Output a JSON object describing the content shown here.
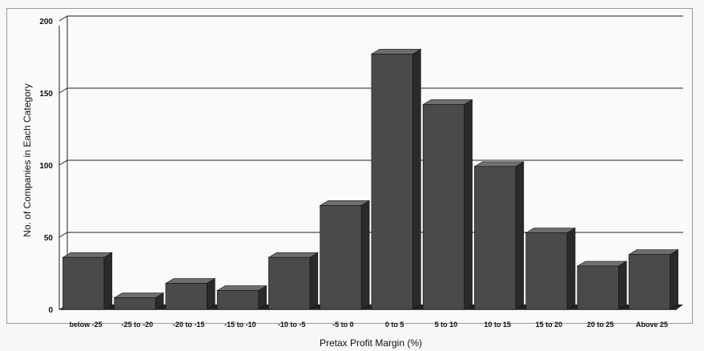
{
  "chart_data": {
    "type": "bar",
    "title": "",
    "xlabel": "Pretax Profit Margin (%)",
    "ylabel": "No. of Companies in Each Category",
    "ylim": [
      0,
      200
    ],
    "yticks": [
      0,
      50,
      100,
      150,
      200
    ],
    "grid": true,
    "categories": [
      "below -25",
      "-25 to -20",
      "-20 to -15",
      "-15 to -10",
      "-10 to -5",
      "-5 to 0",
      "0 to 5",
      "5 to 10",
      "10 to 15",
      "15 to 20",
      "20 to 25",
      "Above 25"
    ],
    "values": [
      36,
      8,
      18,
      13,
      36,
      72,
      177,
      142,
      99,
      53,
      30,
      38
    ]
  },
  "colors": {
    "bar_front": "#4a4a4a",
    "bar_top": "#6e6e6e",
    "bar_side": "#2a2a2a",
    "grid": "#222222"
  }
}
